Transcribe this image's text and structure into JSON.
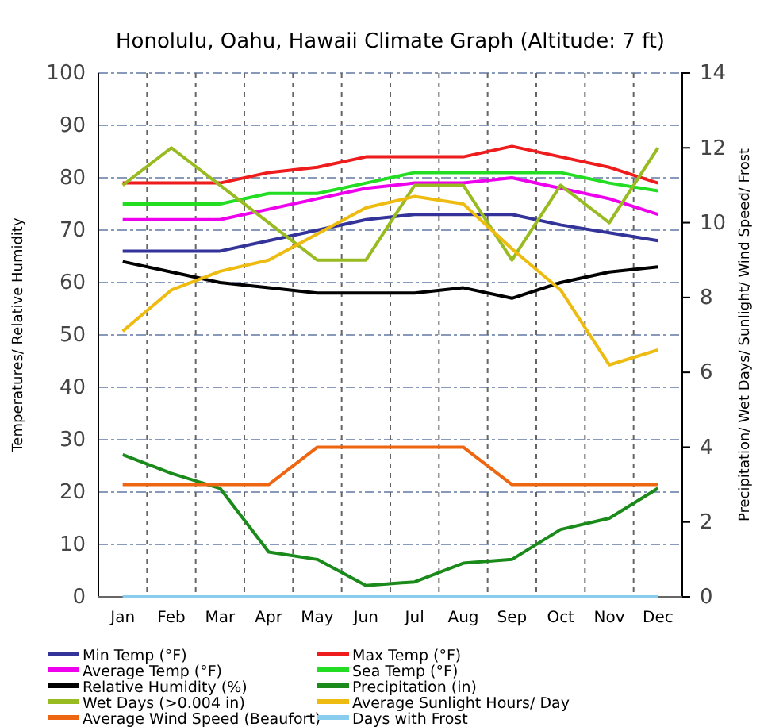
{
  "chart_data": {
    "type": "line",
    "title": "Honolulu, Oahu, Hawaii Climate Graph (Altitude: 7 ft)",
    "ylabel": "Temperatures/ Relative Humidity",
    "y2label": "Precipitation/ Wet Days/ Sunlight/ Wind Speed/ Frost",
    "categories": [
      "Jan",
      "Feb",
      "Mar",
      "Apr",
      "May",
      "Jun",
      "Jul",
      "Aug",
      "Sep",
      "Oct",
      "Nov",
      "Dec"
    ],
    "ylim": [
      0,
      100
    ],
    "yticks": [
      0,
      10,
      20,
      30,
      40,
      50,
      60,
      70,
      80,
      90,
      100
    ],
    "y2lim": [
      0,
      14
    ],
    "y2ticks": [
      0,
      2,
      4,
      6,
      8,
      10,
      12,
      14
    ],
    "grid": true,
    "legend": "bottom",
    "marker": "none",
    "line_style": "solid",
    "series": [
      {
        "name": "Min Temp (°F)",
        "color": "#333399",
        "values": [
          66,
          66,
          66,
          68,
          70,
          72,
          73,
          73,
          73,
          71,
          69.5,
          68
        ]
      },
      {
        "name": "Max Temp (°F)",
        "color": "#ee1c1c",
        "values": [
          79,
          79,
          79,
          81,
          82,
          84,
          84,
          84,
          86,
          84,
          82,
          79
        ]
      },
      {
        "name": "Average Temp (°F)",
        "color": "#ee00ee",
        "values": [
          72,
          72,
          72,
          74,
          76,
          78,
          79,
          79,
          80,
          78,
          76,
          73
        ]
      },
      {
        "name": "Sea Temp (°F)",
        "color": "#22dd22",
        "values": [
          75,
          75,
          75,
          77,
          77,
          79,
          81,
          81,
          81,
          81,
          79,
          77.5
        ]
      },
      {
        "name": "Relative Humidity (%)",
        "color": "#000000",
        "values": [
          64,
          62,
          60,
          59,
          58,
          58,
          58,
          59,
          57,
          60,
          62,
          63
        ]
      },
      {
        "name": "Precipitation (in)",
        "color": "#1a8a1a",
        "axis": "y2",
        "values": [
          3.8,
          3.3,
          2.9,
          1.2,
          1.0,
          0.3,
          0.4,
          0.9,
          1.0,
          1.8,
          2.1,
          2.9
        ]
      },
      {
        "name": "Wet Days (>0.004 in)",
        "color": "#99bb22",
        "axis": "y2",
        "values": [
          11,
          12,
          11,
          10,
          9,
          9,
          11,
          11,
          9,
          11,
          10,
          12
        ]
      },
      {
        "name": "Average Sunlight Hours/ Day",
        "color": "#eebb11",
        "axis": "y2",
        "values": [
          7.1,
          8.2,
          8.7,
          9.0,
          9.7,
          10.4,
          10.7,
          10.5,
          9.3,
          8.2,
          6.2,
          6.6
        ]
      },
      {
        "name": "Average Wind Speed (Beaufort)",
        "color": "#ee6611",
        "axis": "y2",
        "values": [
          3,
          3,
          3,
          3,
          4,
          4,
          4,
          4,
          3,
          3,
          3,
          3
        ]
      },
      {
        "name": "Days with Frost",
        "color": "#88ccee",
        "axis": "y2",
        "values": [
          0,
          0,
          0,
          0,
          0,
          0,
          0,
          0,
          0,
          0,
          0,
          0
        ]
      }
    ]
  }
}
